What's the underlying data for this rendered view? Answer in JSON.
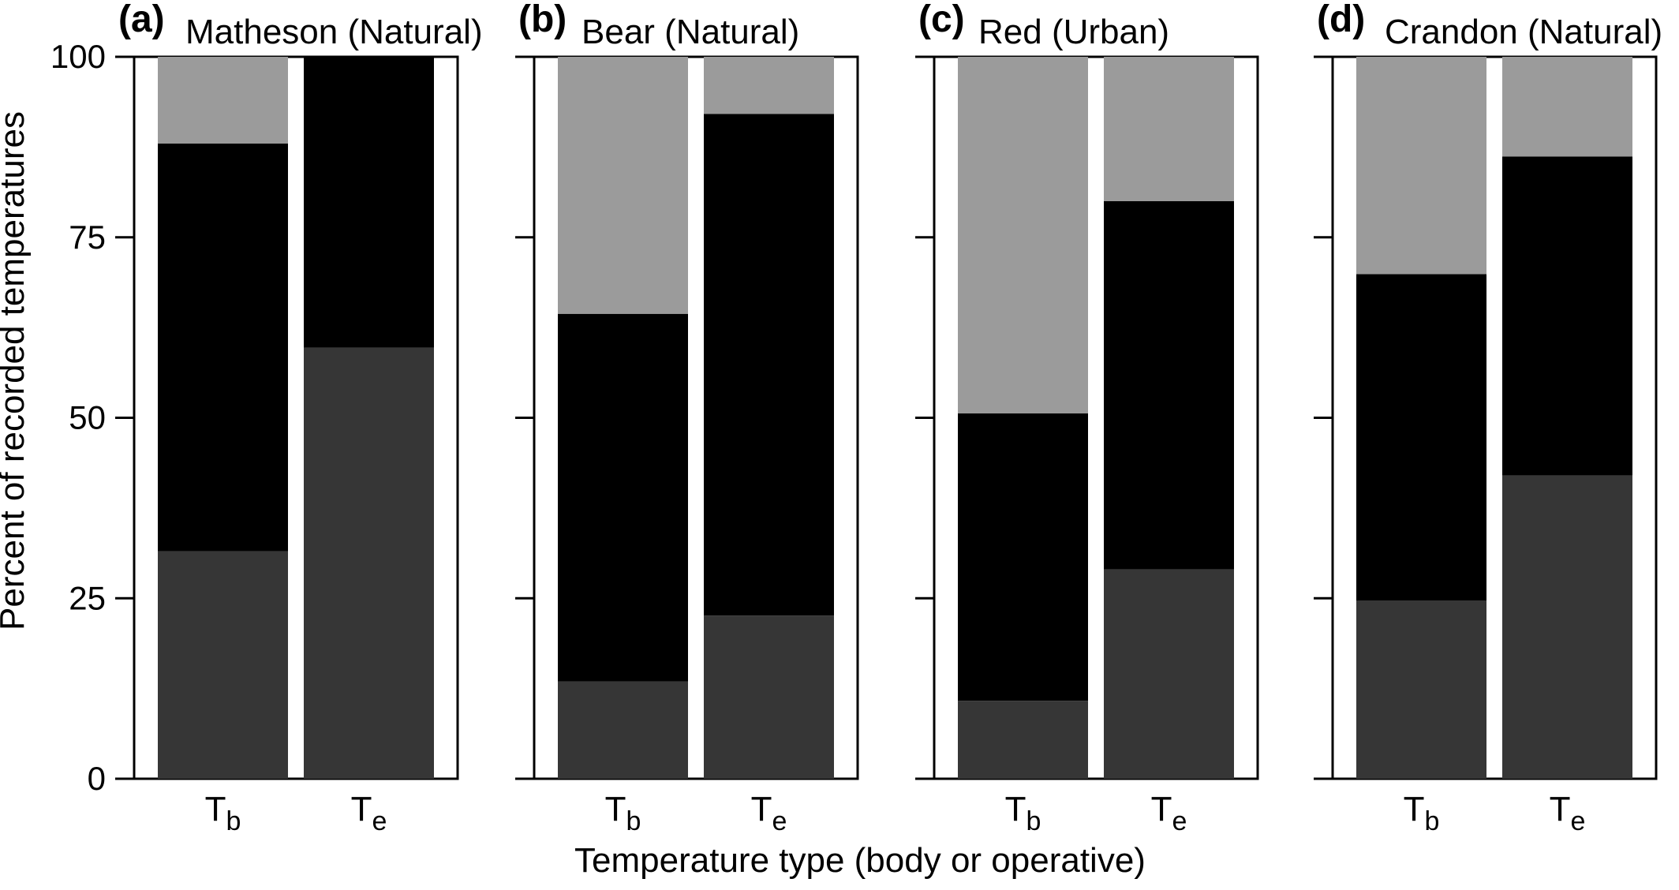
{
  "colors": {
    "bottom_segment": "#363636",
    "middle_segment": "#000000",
    "top_segment": "#9b9b9b",
    "frame": "#000000",
    "background": "#ffffff"
  },
  "chart_data": {
    "type": "stacked_bar",
    "ylabel": "Percent of recorded temperatures",
    "xlabel": "Temperature type (body or operative)",
    "ylim": [
      0,
      100
    ],
    "yticks": [
      0,
      25,
      50,
      75,
      100
    ],
    "ytick_labels": [
      "0",
      "25",
      "50",
      "75",
      "100"
    ],
    "grid": false,
    "legend": "none",
    "categories": [
      {
        "main": "T",
        "sub": "b"
      },
      {
        "main": "T",
        "sub": "e"
      }
    ],
    "panels": [
      {
        "label": "(a)",
        "title": "Matheson (Natural)",
        "bars": [
          {
            "segments": [
              31.5,
              56.5,
              12.0
            ]
          },
          {
            "segments": [
              59.7,
              40.3,
              0.0
            ]
          }
        ]
      },
      {
        "label": "(b)",
        "title": "Bear (Natural)",
        "bars": [
          {
            "segments": [
              13.5,
              50.9,
              35.6
            ]
          },
          {
            "segments": [
              22.6,
              69.5,
              7.9
            ]
          }
        ]
      },
      {
        "label": "(c)",
        "title": "Red (Urban)",
        "bars": [
          {
            "segments": [
              10.8,
              39.8,
              49.4
            ]
          },
          {
            "segments": [
              29.0,
              51.0,
              20.0
            ]
          }
        ]
      },
      {
        "label": "(d)",
        "title": "Crandon (Natural)",
        "bars": [
          {
            "segments": [
              24.7,
              45.2,
              30.1
            ]
          },
          {
            "segments": [
              42.0,
              44.2,
              13.8
            ]
          }
        ]
      }
    ]
  }
}
